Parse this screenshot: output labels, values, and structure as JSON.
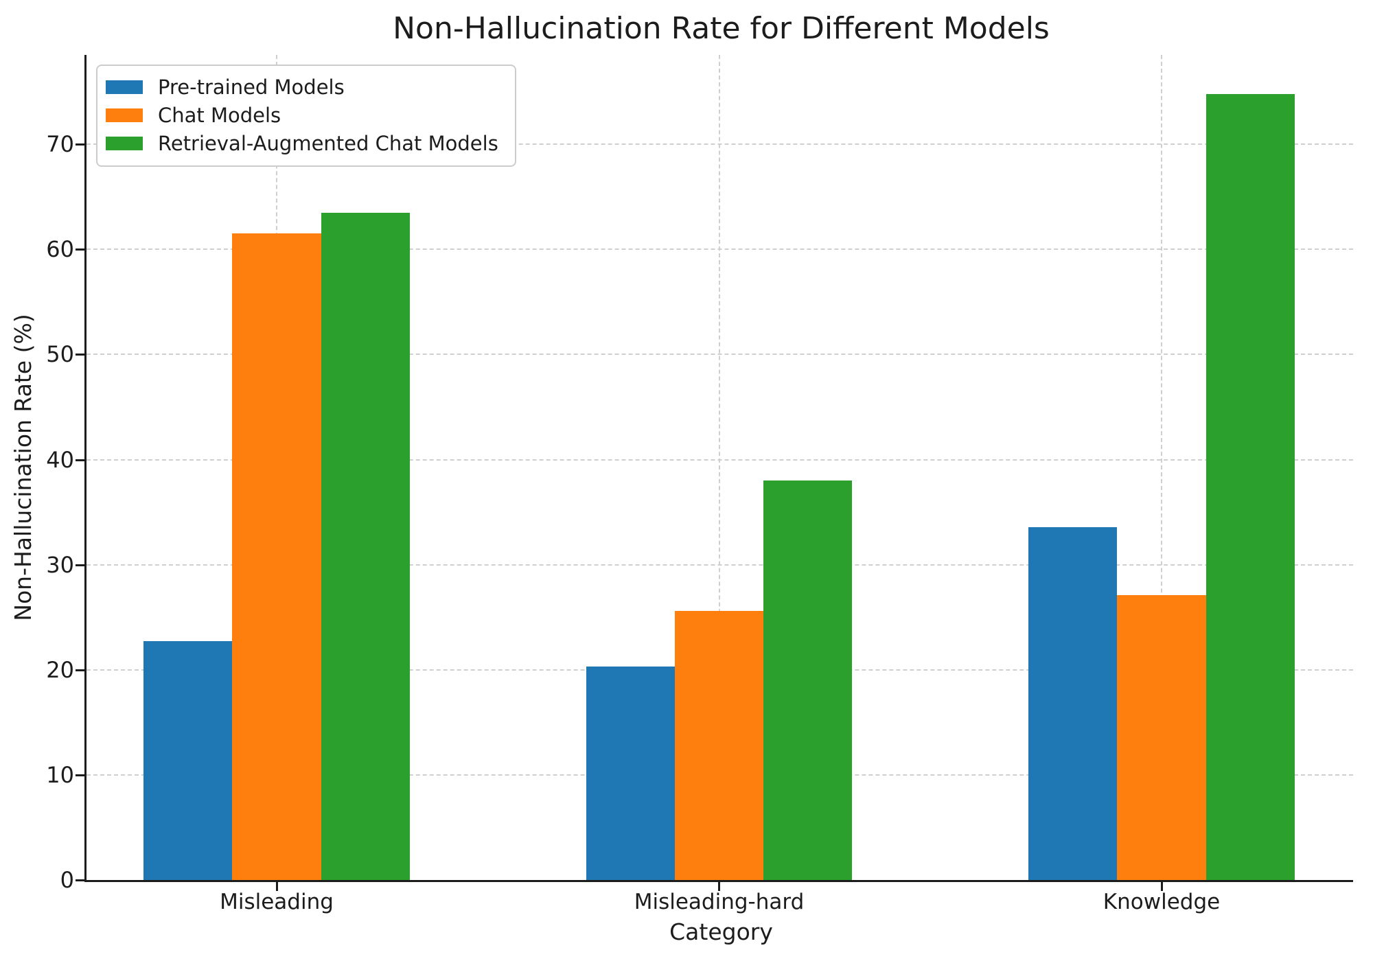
{
  "chart_data": {
    "type": "bar",
    "title": "Non-Hallucination Rate for Different Models",
    "xlabel": "Category",
    "ylabel": "Non-Hallucination Rate (%)",
    "categories": [
      "Misleading",
      "Misleading-hard",
      "Knowledge"
    ],
    "series": [
      {
        "name": "Pre-trained Models",
        "color": "#1f77b4",
        "values": [
          22.7,
          20.3,
          33.6
        ]
      },
      {
        "name": "Chat Models",
        "color": "#ff7f0e",
        "values": [
          61.5,
          25.6,
          27.1
        ]
      },
      {
        "name": "Retrieval-Augmented Chat Models",
        "color": "#2ca02c",
        "values": [
          63.5,
          38.0,
          74.8
        ]
      }
    ],
    "ylim": [
      0,
      78.5
    ],
    "y_ticks": [
      0,
      10,
      20,
      30,
      40,
      50,
      60,
      70
    ],
    "grid": "dashed-both-axes",
    "legend_position": "upper-left",
    "spines": [
      "left",
      "bottom"
    ]
  },
  "colors": {
    "background": "#ffffff",
    "text": "#1c1c1c",
    "grid": "#cfcfcf",
    "spine": "#1c1c1c",
    "legend_border": "#cccccc"
  }
}
